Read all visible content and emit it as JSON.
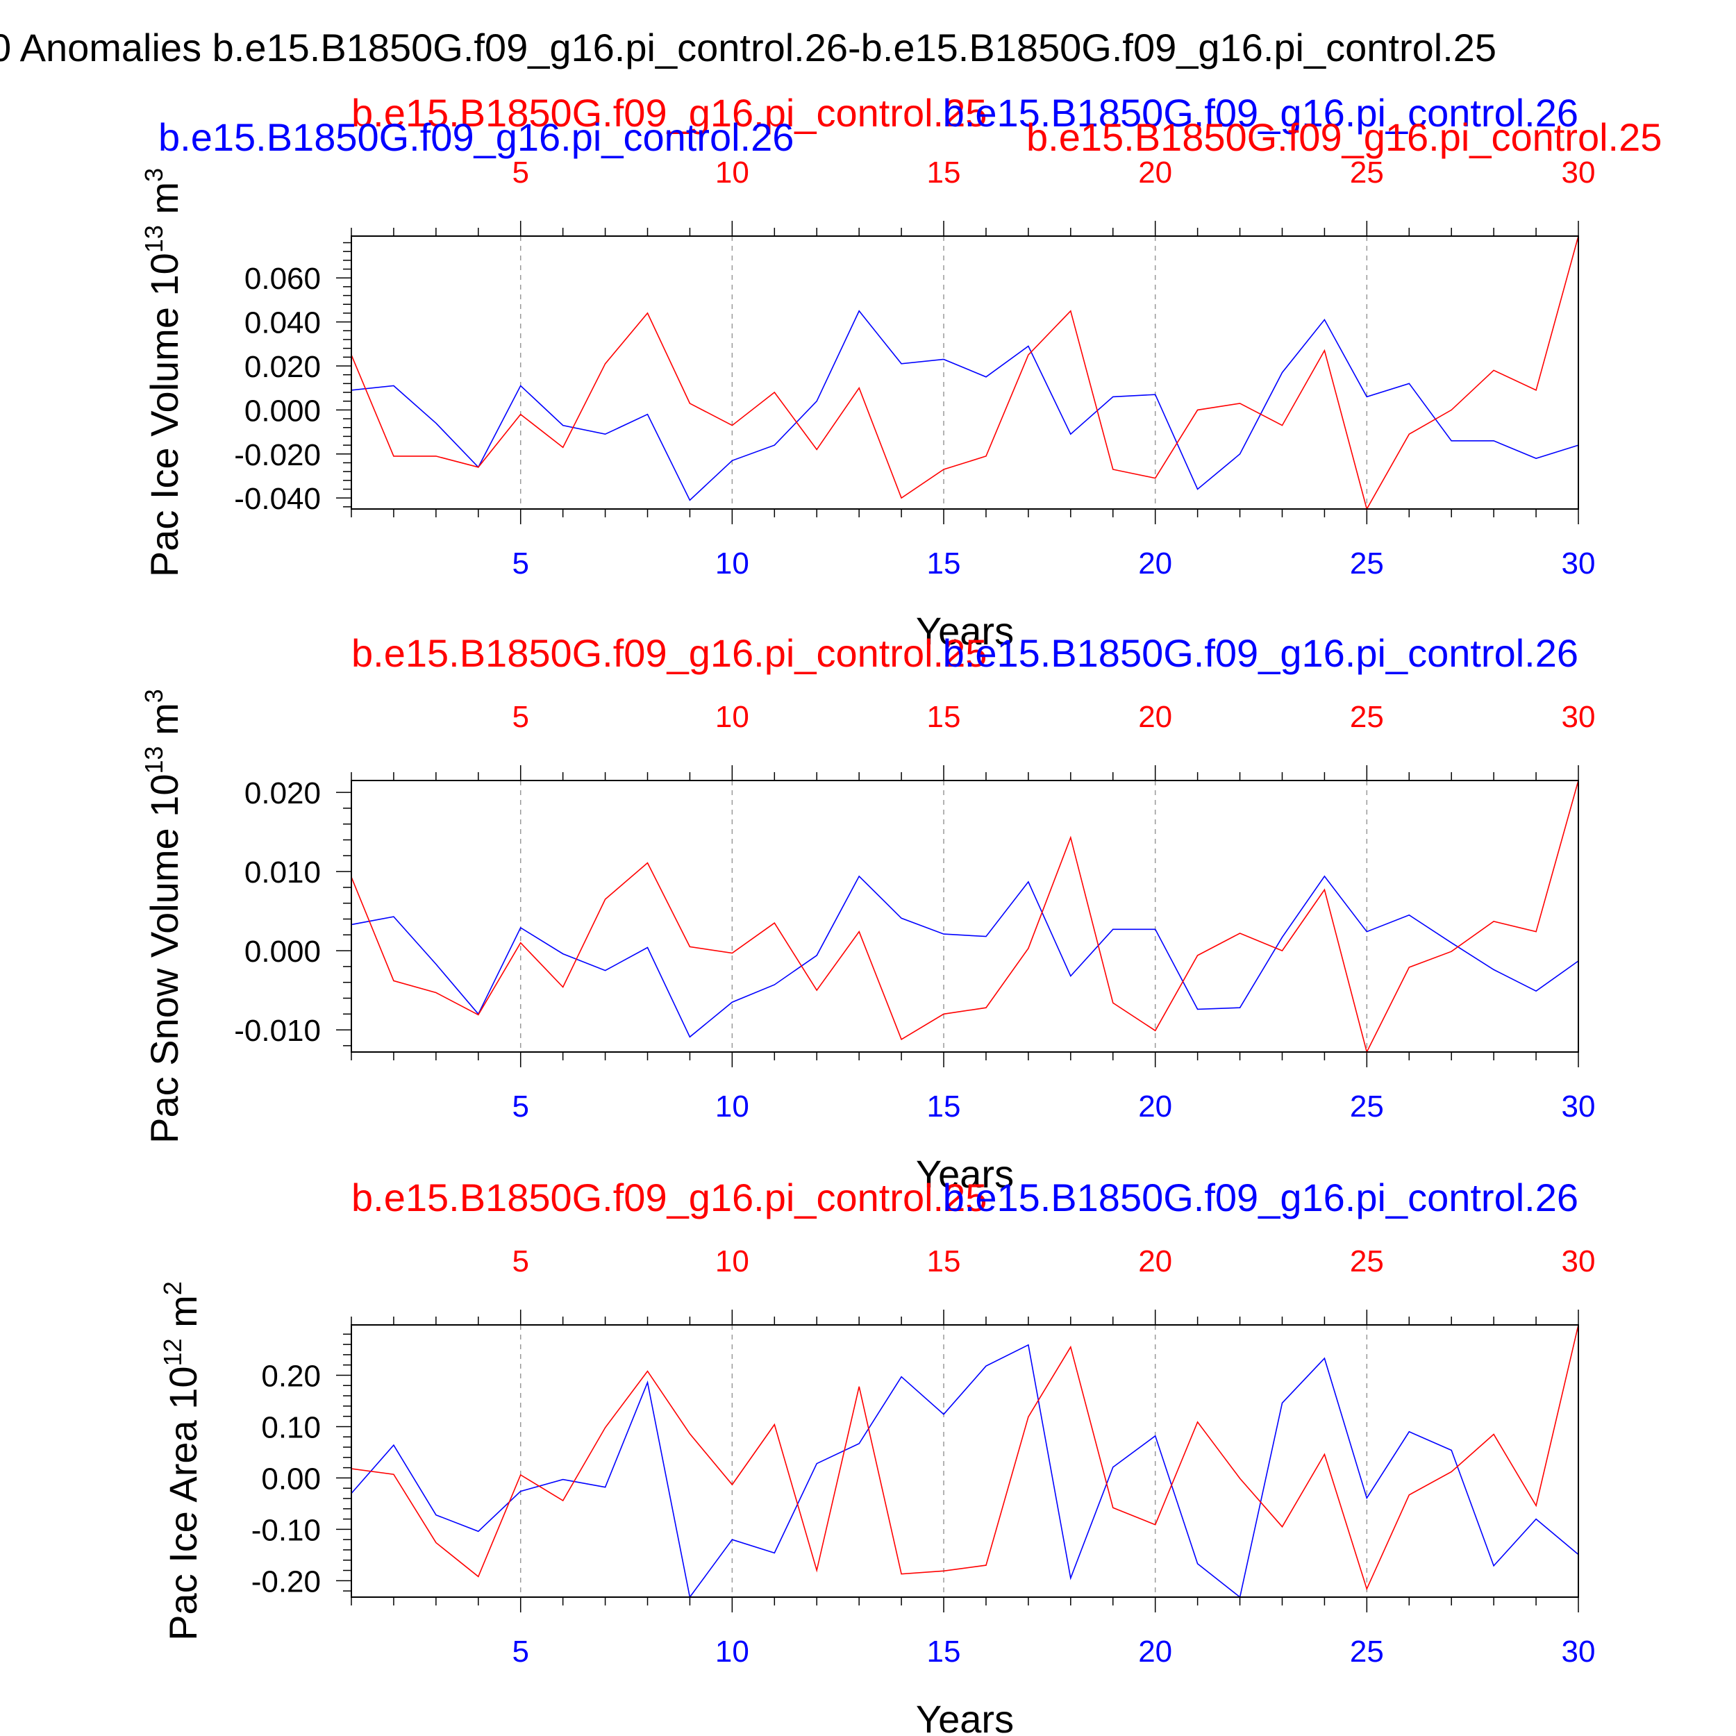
{
  "figure_title": "0 Anomalies b.e15.B1850G.f09_g16.pi_control.26-b.e15.B1850G.f09_g16.pi_control.25",
  "colors": {
    "run_a": "#0000ff",
    "run_b": "#ff0000",
    "axis": "#000000",
    "grid": "#999999"
  },
  "chart_data": [
    {
      "type": "line",
      "ylabel": "Pac Ice Volume 10",
      "ylabel_sup": "13",
      "ylabel_unit": " m",
      "ylabel_unit_sup": "3",
      "xlabel": "Years",
      "xlim": [
        1,
        30
      ],
      "ylim": [
        -0.045,
        0.079
      ],
      "yticks": [
        -0.04,
        -0.02,
        0.0,
        0.02,
        0.04,
        0.06
      ],
      "ytick_labels": [
        "-0.040",
        "-0.020",
        "0.000",
        "0.020",
        "0.040",
        "0.060"
      ],
      "xticks": [
        5,
        10,
        15,
        20,
        25,
        30
      ],
      "xtick_labels": [
        "5",
        "10",
        "15",
        "20",
        "25",
        "30"
      ],
      "grid": "vertical dashed at major x ticks",
      "x": [
        1,
        2,
        3,
        4,
        5,
        6,
        7,
        8,
        9,
        10,
        11,
        12,
        13,
        14,
        15,
        16,
        17,
        18,
        19,
        20,
        21,
        22,
        23,
        24,
        25,
        26,
        27,
        28,
        29,
        30
      ],
      "series": [
        {
          "name": "b.e15.B1850G.f09_g16.pi_control.26",
          "color": "#0000ff",
          "axis": "bottom",
          "values": [
            0.009,
            0.011,
            -0.006,
            -0.026,
            0.011,
            -0.007,
            -0.011,
            -0.002,
            -0.041,
            -0.023,
            -0.016,
            0.004,
            0.045,
            0.021,
            0.023,
            0.015,
            0.029,
            -0.011,
            0.006,
            0.007,
            -0.036,
            -0.02,
            0.017,
            0.041,
            0.006,
            0.012,
            -0.014,
            -0.014,
            -0.022,
            -0.016
          ]
        },
        {
          "name": "b.e15.B1850G.f09_g16.pi_control.25",
          "color": "#ff0000",
          "axis": "top",
          "values": [
            0.025,
            -0.021,
            -0.021,
            -0.026,
            -0.002,
            -0.017,
            0.021,
            0.044,
            0.003,
            -0.007,
            0.008,
            -0.018,
            0.01,
            -0.04,
            -0.027,
            -0.021,
            0.025,
            0.045,
            -0.027,
            -0.031,
            0.0,
            0.003,
            -0.007,
            0.027,
            -0.045,
            -0.011,
            0.0,
            0.018,
            0.009,
            0.079
          ]
        }
      ]
    },
    {
      "type": "line",
      "ylabel": "Pac Snow Volume 10",
      "ylabel_sup": "13",
      "ylabel_unit": " m",
      "ylabel_unit_sup": "3",
      "xlabel": "Years",
      "xlim": [
        1,
        30
      ],
      "ylim": [
        -0.0128,
        0.0215
      ],
      "yticks": [
        -0.01,
        0.0,
        0.01,
        0.02
      ],
      "ytick_labels": [
        "-0.010",
        "0.000",
        "0.010",
        "0.020"
      ],
      "xticks": [
        5,
        10,
        15,
        20,
        25,
        30
      ],
      "xtick_labels": [
        "5",
        "10",
        "15",
        "20",
        "25",
        "30"
      ],
      "grid": "vertical dashed at major x ticks",
      "x": [
        1,
        2,
        3,
        4,
        5,
        6,
        7,
        8,
        9,
        10,
        11,
        12,
        13,
        14,
        15,
        16,
        17,
        18,
        19,
        20,
        21,
        22,
        23,
        24,
        25,
        26,
        27,
        28,
        29,
        30
      ],
      "series": [
        {
          "name": "b.e15.B1850G.f09_g16.pi_control.26",
          "color": "#0000ff",
          "axis": "bottom",
          "values": [
            0.0033,
            0.0043,
            -0.0017,
            -0.008,
            0.0029,
            -0.0004,
            -0.0025,
            0.0004,
            -0.0109,
            -0.0065,
            -0.0043,
            -0.0006,
            0.0094,
            0.0041,
            0.0021,
            0.0018,
            0.0087,
            -0.0032,
            0.0027,
            0.0027,
            -0.0074,
            -0.0072,
            0.0017,
            0.0094,
            0.0024,
            0.0045,
            0.001,
            -0.0024,
            -0.0051,
            -0.0013
          ]
        },
        {
          "name": "b.e15.B1850G.f09_g16.pi_control.25",
          "color": "#ff0000",
          "axis": "top",
          "values": [
            0.0093,
            -0.0038,
            -0.0053,
            -0.0081,
            0.001,
            -0.0046,
            0.0065,
            0.0111,
            0.0005,
            -0.0003,
            0.0035,
            -0.005,
            0.0024,
            -0.0112,
            -0.008,
            -0.0072,
            0.0003,
            0.0143,
            -0.0066,
            -0.0101,
            -0.0006,
            0.0022,
            0.0,
            0.0077,
            -0.0128,
            -0.0021,
            -0.0001,
            0.0037,
            0.0024,
            0.0215
          ]
        }
      ]
    },
    {
      "type": "line",
      "ylabel": "Pac Ice Area 10",
      "ylabel_sup": "12",
      "ylabel_unit": " m",
      "ylabel_unit_sup": "2",
      "xlabel": "Years",
      "xlim": [
        1,
        30
      ],
      "ylim": [
        -0.232,
        0.298
      ],
      "yticks": [
        -0.2,
        -0.1,
        0.0,
        0.1,
        0.2
      ],
      "ytick_labels": [
        "-0.20",
        "-0.10",
        "0.00",
        "0.10",
        "0.20"
      ],
      "xticks": [
        5,
        10,
        15,
        20,
        25,
        30
      ],
      "xtick_labels": [
        "5",
        "10",
        "15",
        "20",
        "25",
        "30"
      ],
      "grid": "vertical dashed at major x ticks",
      "x": [
        1,
        2,
        3,
        4,
        5,
        6,
        7,
        8,
        9,
        10,
        11,
        12,
        13,
        14,
        15,
        16,
        17,
        18,
        19,
        20,
        21,
        22,
        23,
        24,
        25,
        26,
        27,
        28,
        29,
        30
      ],
      "series": [
        {
          "name": "b.e15.B1850G.f09_g16.pi_control.26",
          "color": "#0000ff",
          "axis": "bottom",
          "values": [
            -0.03,
            0.064,
            -0.072,
            -0.104,
            -0.026,
            -0.003,
            -0.018,
            0.186,
            -0.232,
            -0.12,
            -0.146,
            0.028,
            0.067,
            0.197,
            0.124,
            0.218,
            0.259,
            -0.195,
            0.021,
            0.082,
            -0.167,
            -0.232,
            0.146,
            0.233,
            -0.039,
            0.09,
            0.054,
            -0.171,
            -0.08,
            -0.149
          ]
        },
        {
          "name": "b.e15.B1850G.f09_g16.pi_control.25",
          "color": "#ff0000",
          "axis": "top",
          "values": [
            0.018,
            0.007,
            -0.126,
            -0.192,
            0.006,
            -0.044,
            0.098,
            0.208,
            0.086,
            -0.013,
            0.104,
            -0.18,
            0.178,
            -0.187,
            -0.181,
            -0.17,
            0.119,
            0.255,
            -0.058,
            -0.091,
            0.109,
            -0.001,
            -0.095,
            0.046,
            -0.216,
            -0.033,
            0.012,
            0.085,
            -0.054,
            0.298
          ]
        }
      ]
    }
  ]
}
